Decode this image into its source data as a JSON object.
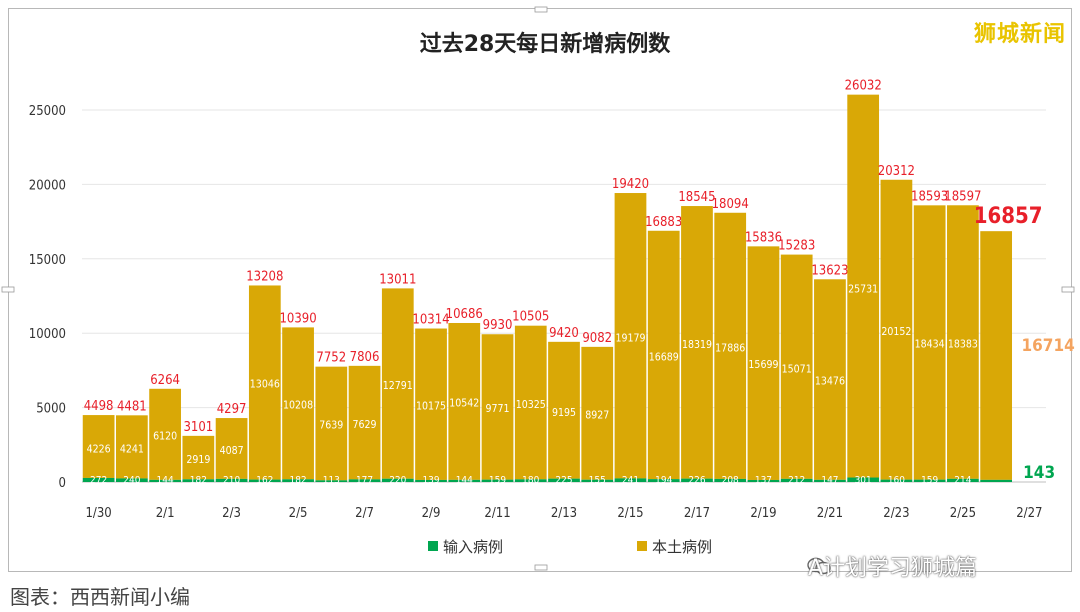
{
  "brand": "狮城新闻",
  "caption": "图表：西西新闻小编",
  "watermark": "A计划学习狮城篇",
  "watermark_icon": "wechat-icon",
  "chart_data": {
    "type": "bar",
    "stacked": true,
    "title": "过去28天每日新增病例数",
    "ylim": [
      0,
      28000
    ],
    "yticks": [
      0,
      5000,
      10000,
      15000,
      20000,
      25000
    ],
    "grid": true,
    "legend_position": "bottom",
    "x_tick_labels": [
      "1/30",
      "2/1",
      "2/3",
      "2/5",
      "2/7",
      "2/9",
      "2/11",
      "2/13",
      "2/15",
      "2/17",
      "2/19",
      "2/21",
      "2/23",
      "2/25",
      "2/27"
    ],
    "categories": [
      "1/30",
      "1/31",
      "2/1",
      "2/2",
      "2/3",
      "2/4",
      "2/5",
      "2/6",
      "2/7",
      "2/8",
      "2/9",
      "2/10",
      "2/11",
      "2/12",
      "2/13",
      "2/14",
      "2/15",
      "2/16",
      "2/17",
      "2/18",
      "2/19",
      "2/20",
      "2/21",
      "2/22",
      "2/23",
      "2/24",
      "2/25",
      "2/26",
      "2/27"
    ],
    "totals": [
      4498,
      4481,
      6264,
      3101,
      4297,
      13208,
      10390,
      7752,
      7806,
      13011,
      10314,
      10686,
      9930,
      10505,
      9420,
      9082,
      19420,
      16883,
      18545,
      18094,
      15836,
      15283,
      13623,
      26032,
      20312,
      18593,
      18597,
      16857,
      null
    ],
    "totals_text": [
      "4498",
      "4481",
      "6264",
      "3101",
      "4297",
      "13208",
      "10390",
      "7752",
      "7806",
      "13011",
      "10314",
      "10686",
      "9930",
      "10505",
      "9420",
      "9082",
      "19420",
      "16883",
      "18545",
      "18094",
      "15836",
      "15283",
      "13623",
      "26032",
      "20312",
      "18593",
      "18597",
      "16857",
      ""
    ],
    "series": [
      {
        "name": "输入病例",
        "color": "#00a650",
        "values": [
          272,
          240,
          144,
          182,
          210,
          162,
          182,
          113,
          177,
          220,
          139,
          144,
          159,
          180,
          225,
          155,
          241,
          194,
          226,
          208,
          137,
          212,
          147,
          301,
          160,
          159,
          214,
          143,
          null
        ]
      },
      {
        "name": "本土病例",
        "color": "#d9a806",
        "values": [
          4226,
          4241,
          6120,
          2919,
          4087,
          13046,
          10208,
          7639,
          7629,
          12791,
          10175,
          10542,
          9771,
          10325,
          9195,
          8927,
          19179,
          16689,
          18319,
          17886,
          15699,
          15071,
          13476,
          25731,
          20152,
          18434,
          18383,
          16714,
          null
        ]
      }
    ],
    "imported_text": [
      "272",
      "240",
      "144",
      "182",
      "210",
      "162",
      "182",
      "113",
      "177",
      "220",
      "139",
      "144",
      "159",
      "180",
      "225",
      "155",
      "241",
      "194",
      "226",
      "208",
      "137",
      "212",
      "147",
      "301",
      "160",
      "159",
      "214",
      "",
      ""
    ],
    "local_text": [
      "4226",
      "4241",
      "6120",
      "2919",
      "4087",
      "13046",
      "10208",
      "7639",
      "7629",
      "12791",
      "10175",
      "10542",
      "9771",
      "10325",
      "9195",
      "8927",
      "19179",
      "16689",
      "18319",
      "17886",
      "15699",
      "15071",
      "13476",
      "25731",
      "20152",
      "18434",
      "18383",
      "",
      ""
    ],
    "highlight": {
      "total": "16857",
      "local": "16714",
      "imported": "143"
    },
    "colors": {
      "total_label": "#e8202a",
      "local_highlight": "#f4a460",
      "grid": "#e6e6e6"
    }
  }
}
